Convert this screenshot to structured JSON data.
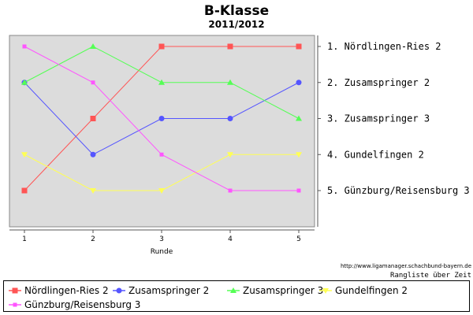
{
  "chart_data": {
    "type": "line",
    "title": "B-Klasse",
    "subtitle": "2011/2012",
    "xlabel": "Runde",
    "ylabel": "",
    "x": [
      1,
      2,
      3,
      4,
      5
    ],
    "ylim": [
      1,
      5
    ],
    "y_inverted": true,
    "grid": false,
    "right_axis_labels": [
      "1.  Nördlingen-Ries 2",
      "2.  Zusamspringer 2",
      "3.  Zusamspringer 3",
      "4.  Gundelfingen 2",
      "5.  Günzburg/Reisensburg 3"
    ],
    "series": [
      {
        "name": "Nördlingen-Ries 2",
        "color": "#ff5555",
        "marker": "square",
        "values": [
          5,
          3,
          1,
          1,
          1
        ]
      },
      {
        "name": "Zusamspringer 2",
        "color": "#5555ff",
        "marker": "circle",
        "values": [
          2,
          4,
          3,
          3,
          2
        ]
      },
      {
        "name": "Zusamspringer 3",
        "color": "#55ff55",
        "marker": "triangle",
        "values": [
          2,
          1,
          2,
          2,
          3
        ]
      },
      {
        "name": "Gundelfingen 2",
        "color": "#ffff55",
        "marker": "triangle-down",
        "values": [
          4,
          5,
          5,
          4,
          4
        ]
      },
      {
        "name": "Günzburg/Reisensburg 3",
        "color": "#ff55ff",
        "marker": "square-small",
        "values": [
          1,
          2,
          4,
          5,
          5
        ]
      }
    ],
    "source_url": "http://www.ligamanager.schachbund-bayern.de",
    "caption": "Rangliste über Zeit",
    "legend_position": "bottom"
  }
}
